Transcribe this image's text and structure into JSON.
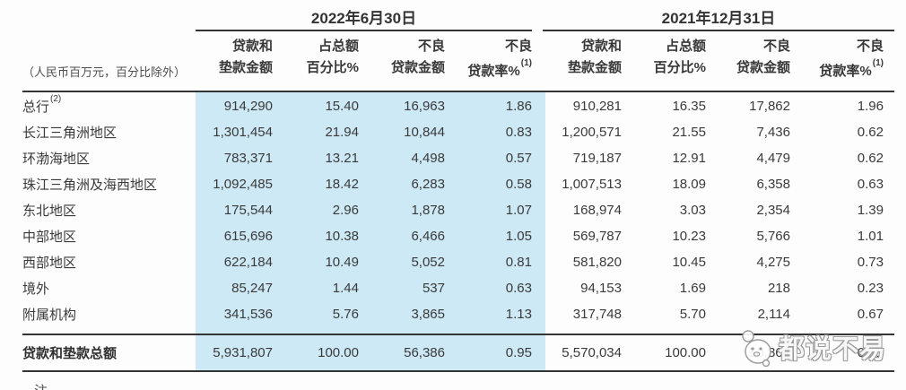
{
  "colors": {
    "highlight": "#cde9f5",
    "rule": "#343434",
    "text": "#3a3a3a"
  },
  "watermark": {
    "text": "都说不易"
  },
  "table": {
    "unit_note": "（人民币百万元，百分比除外）",
    "footnote": "注",
    "periods": [
      {
        "label": "2022年6月30日"
      },
      {
        "label": "2021年12月31日"
      }
    ],
    "columns": [
      {
        "line1": "贷款和",
        "line2": "垫款金额",
        "sup": ""
      },
      {
        "line1": "占总额",
        "line2": "百分比%",
        "sup": ""
      },
      {
        "line1": "不良",
        "line2": "贷款金额",
        "sup": ""
      },
      {
        "line1": "不良",
        "line2": "贷款率%",
        "sup": "(1)"
      }
    ],
    "rows": [
      {
        "label": "总行",
        "sup": "(2)",
        "cells": [
          "914,290",
          "15.40",
          "16,963",
          "1.86",
          "910,281",
          "16.35",
          "17,862",
          "1.96"
        ]
      },
      {
        "label": "长江三角洲地区",
        "sup": "",
        "cells": [
          "1,301,454",
          "21.94",
          "10,844",
          "0.83",
          "1,200,571",
          "21.55",
          "7,436",
          "0.62"
        ]
      },
      {
        "label": "环渤海地区",
        "sup": "",
        "cells": [
          "783,371",
          "13.21",
          "4,498",
          "0.57",
          "719,187",
          "12.91",
          "4,479",
          "0.62"
        ]
      },
      {
        "label": "珠江三角洲及海西地区",
        "sup": "",
        "cells": [
          "1,092,485",
          "18.42",
          "6,283",
          "0.58",
          "1,007,513",
          "18.09",
          "6,358",
          "0.63"
        ]
      },
      {
        "label": "东北地区",
        "sup": "",
        "cells": [
          "175,544",
          "2.96",
          "1,878",
          "1.07",
          "168,974",
          "3.03",
          "2,354",
          "1.39"
        ]
      },
      {
        "label": "中部地区",
        "sup": "",
        "cells": [
          "615,696",
          "10.38",
          "6,466",
          "1.05",
          "569,787",
          "10.23",
          "5,766",
          "1.01"
        ]
      },
      {
        "label": "西部地区",
        "sup": "",
        "cells": [
          "622,184",
          "10.49",
          "5,052",
          "0.81",
          "581,820",
          "10.45",
          "4,275",
          "0.73"
        ]
      },
      {
        "label": "境外",
        "sup": "",
        "cells": [
          "85,247",
          "1.44",
          "537",
          "0.63",
          "94,153",
          "1.69",
          "218",
          "0.23"
        ]
      },
      {
        "label": "附属机构",
        "sup": "",
        "cells": [
          "341,536",
          "5.76",
          "3,865",
          "1.13",
          "317,748",
          "5.70",
          "2,114",
          "0.67"
        ]
      }
    ],
    "total_row": {
      "label": "贷款和垫款总额",
      "cells": [
        "5,931,807",
        "100.00",
        "56,386",
        "0.95",
        "5,570,034",
        "100.00",
        "50,862",
        "0.91"
      ]
    }
  }
}
